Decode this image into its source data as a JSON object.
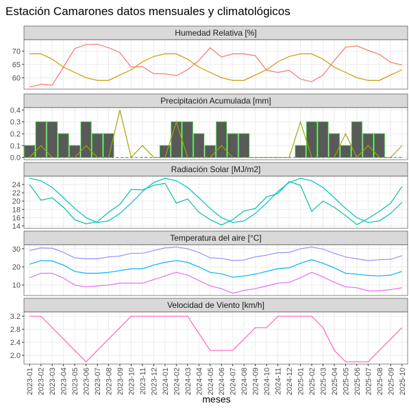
{
  "title": "Estación Camarones datos mensuales y climatológicos",
  "xlabel": "meses",
  "x": [
    "2023-01",
    "2023-02",
    "2023-03",
    "2023-04",
    "2023-05",
    "2023-06",
    "2023-07",
    "2023-08",
    "2023-09",
    "2023-10",
    "2023-11",
    "2023-12",
    "2024-01",
    "2024-02",
    "2024-03",
    "2024-04",
    "2024-05",
    "2024-06",
    "2024-07",
    "2024-08",
    "2024-09",
    "2024-10",
    "2024-11",
    "2024-12",
    "2025-01",
    "2025-02",
    "2025-03",
    "2025-04",
    "2025-05",
    "2025-06",
    "2025-07",
    "2025-08",
    "2025-09",
    "2025-10"
  ],
  "chart_data": [
    {
      "type": "line",
      "title": "Humedad Relativa [%]",
      "ylim": [
        55.7,
        74.3
      ],
      "yticks": [
        60,
        65,
        70
      ],
      "grid": true,
      "series": [
        {
          "color": "#F8766D",
          "values": [
            56.5,
            57.5,
            57.2,
            64,
            71,
            72.5,
            72.6,
            71.3,
            69.5,
            64,
            64.2,
            61.5,
            61.5,
            60.8,
            63,
            66.5,
            71.3,
            67.8,
            69,
            69,
            68.3,
            62.8,
            62,
            62.8,
            59.5,
            58.5,
            61,
            66.5,
            71.5,
            72,
            70.3,
            68.8,
            65.8,
            64.8
          ]
        },
        {
          "color": "#CD9600",
          "values": [
            69,
            69,
            67,
            64,
            62,
            60,
            59,
            59,
            61,
            63,
            66,
            68,
            69,
            69,
            67,
            64,
            62,
            60,
            59,
            59,
            61,
            63,
            66,
            68,
            69,
            69,
            67,
            64,
            62,
            60,
            59,
            59,
            61,
            63
          ]
        }
      ]
    },
    {
      "type": "bar",
      "title": "Precipitación Acumulada [mm]",
      "ylim": [
        -0.02,
        0.42
      ],
      "yticks": [
        {
          "value": 0,
          "label": "0.0"
        },
        0.1,
        0.2,
        0.3,
        0.4
      ],
      "grid": true,
      "series": [
        {
          "kind": "bar",
          "color": "#595959",
          "edge_color": "#2DB82D",
          "values": [
            0.1,
            0.3,
            0.3,
            0.2,
            0.1,
            0.3,
            0.2,
            0.2,
            0,
            0,
            0,
            0,
            0.1,
            0.3,
            0.3,
            0.2,
            0.1,
            0.3,
            0.2,
            0.2,
            0,
            0,
            0,
            0,
            0.1,
            0.3,
            0.3,
            0.2,
            0.1,
            0.3,
            0.2,
            0.2,
            0,
            0
          ]
        },
        {
          "kind": "line",
          "color": "#A3A500",
          "values": [
            0,
            0.1,
            0,
            0,
            0,
            0.1,
            0,
            0,
            0.4,
            0,
            0.1,
            0,
            0,
            0.3,
            0,
            0,
            0,
            0.1,
            0,
            0,
            0,
            0,
            0,
            0,
            0.3,
            0,
            0,
            0,
            0.2,
            0,
            0.1,
            0,
            0,
            0.1
          ]
        },
        {
          "kind": "line",
          "dash": true,
          "color": "#00BA38",
          "values": [
            0,
            0,
            0,
            0,
            0,
            0,
            0,
            0,
            0,
            0,
            0,
            0,
            0,
            0,
            0,
            0,
            0,
            0,
            0,
            0,
            0,
            0,
            0,
            0,
            0,
            0,
            0,
            0,
            0,
            0,
            0,
            0,
            0,
            0
          ]
        }
      ]
    },
    {
      "type": "line",
      "title": "Radiación Solar [MJ/m2]",
      "ylim": [
        13.4,
        26
      ],
      "yticks": [
        14,
        16,
        18,
        20,
        22,
        24
      ],
      "grid": true,
      "series": [
        {
          "color": "#00BFA0",
          "values": [
            24,
            20.2,
            20.8,
            18.5,
            15.5,
            14.5,
            15,
            17.3,
            19.2,
            22.8,
            22.7,
            23.8,
            24.3,
            19.5,
            20.5,
            17.3,
            15.5,
            14.2,
            15.5,
            17.6,
            18.2,
            21,
            21.8,
            24.7,
            23.8,
            17.5,
            20,
            18.5,
            16.5,
            14.3,
            15.8,
            17.5,
            19.5,
            23.5
          ]
        },
        {
          "color": "#00BFC4",
          "values": [
            25.5,
            24.9,
            23.3,
            20.8,
            18.2,
            16,
            14.8,
            15.2,
            17,
            19.5,
            22.3,
            24.5,
            25.5,
            24.9,
            23.3,
            20.8,
            18.2,
            16,
            14.8,
            15.2,
            17,
            19.5,
            22.3,
            24.5,
            25.5,
            24.9,
            23.3,
            20.8,
            18.2,
            16,
            14.8,
            15.2,
            17,
            19.7
          ]
        }
      ]
    },
    {
      "type": "line",
      "title": "Temperatura del aire [°C]",
      "ylim": [
        4.2,
        32.2
      ],
      "yticks": [
        10,
        20,
        30
      ],
      "grid": true,
      "series": [
        {
          "color": "#9590FF",
          "values": [
            29,
            30.5,
            30.3,
            28,
            25,
            24.5,
            24.5,
            25.5,
            26,
            27.5,
            27.5,
            29,
            30.5,
            31,
            30,
            28,
            25,
            24.7,
            23.5,
            23.8,
            25.5,
            26.5,
            27.8,
            28,
            30,
            31,
            29.8,
            27.5,
            25.5,
            24.5,
            23.5,
            24,
            24.2,
            26.2
          ]
        },
        {
          "color": "#00B0F6",
          "values": [
            21.5,
            23.5,
            23.3,
            21,
            17.5,
            16.5,
            16.5,
            17,
            18,
            19,
            19,
            21,
            22.5,
            23.5,
            22.5,
            20,
            17,
            16.2,
            14.3,
            15,
            16,
            17.5,
            19,
            19.5,
            22,
            24,
            22,
            19.5,
            16.5,
            16,
            15.3,
            15,
            15.5,
            17.5
          ]
        },
        {
          "color": "#E76BF3",
          "values": [
            14,
            16.5,
            16.5,
            13.8,
            10,
            9,
            9.5,
            10,
            11,
            11,
            11,
            13,
            15,
            17,
            15.5,
            12.5,
            9.5,
            8,
            5.5,
            7,
            8,
            9.5,
            11,
            11.5,
            14,
            17,
            14.5,
            11.5,
            9,
            8.5,
            6.8,
            6.8,
            7.5,
            8.5
          ]
        }
      ]
    },
    {
      "type": "line",
      "title": "Velocidad de Viento [km/h]",
      "ylim": [
        1.73,
        3.33
      ],
      "yticks": [
        {
          "value": 2,
          "label": "2.0"
        },
        2.4,
        2.8,
        3.2
      ],
      "grid": true,
      "series": [
        {
          "color": "#FF62BC",
          "values": [
            3.2,
            3.2,
            2.85,
            2.5,
            2.15,
            1.8,
            2.15,
            2.5,
            2.85,
            3.2,
            3.2,
            3.2,
            3.2,
            3.2,
            3.2,
            2.675,
            2.15,
            2.15,
            2.15,
            2.5,
            2.85,
            2.85,
            3.2,
            3.2,
            3.2,
            3.2,
            2.85,
            2.15,
            1.8,
            1.8,
            1.8,
            2.15,
            2.5,
            2.85
          ]
        }
      ]
    }
  ]
}
